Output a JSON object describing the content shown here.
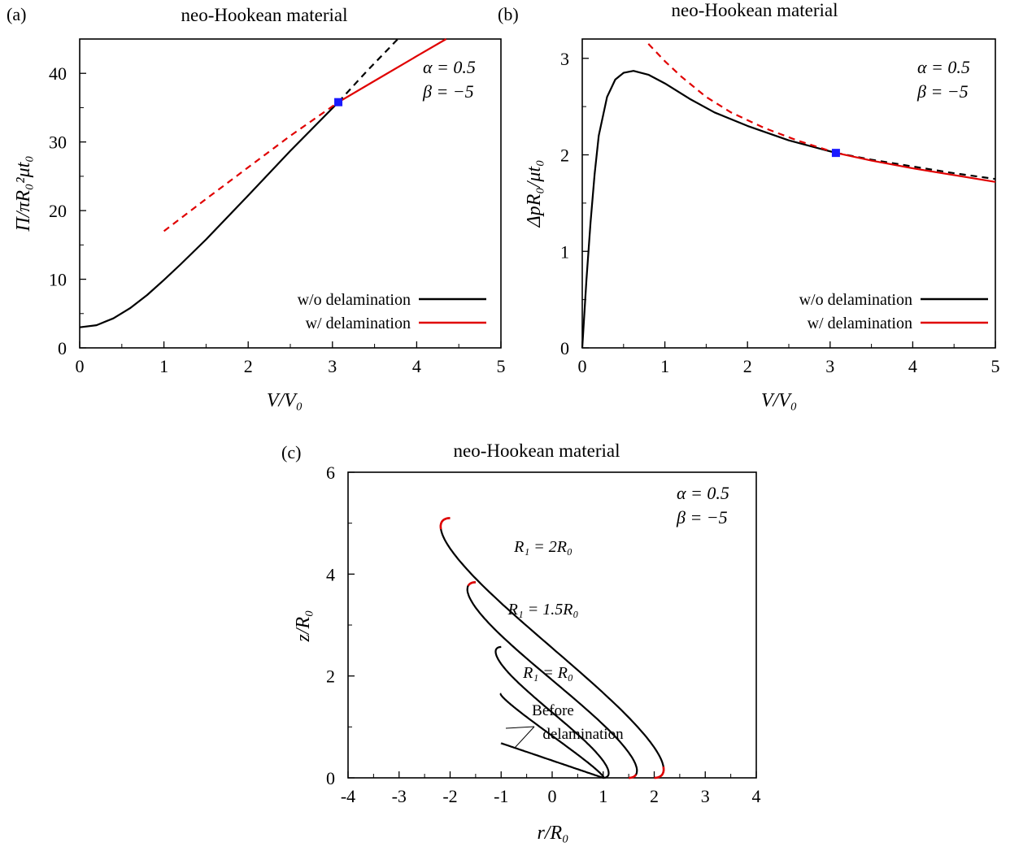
{
  "panels": [
    {
      "panel_label": "(a)",
      "title": "neo-Hookean material",
      "xlabel": "V/V₀",
      "ylabel": "Π/πR₀²μt₀",
      "params": [
        "α = 0.5",
        "β = −5"
      ],
      "legend": [
        "w/o delamination",
        "w/   delamination"
      ]
    },
    {
      "panel_label": "(b)",
      "title": "neo-Hookean material",
      "xlabel": "V/V₀",
      "ylabel": "ΔpR₀/μt₀",
      "params": [
        "α = 0.5",
        "β = −5"
      ],
      "legend": [
        "w/o delamination",
        "w/   delamination"
      ]
    },
    {
      "panel_label": "(c)",
      "title": "neo-Hookean material",
      "xlabel": "r/R₀",
      "ylabel": "z/R₀",
      "params": [
        "α = 0.5",
        "β = −5"
      ],
      "annotations": [
        "R₁ = 2R₀",
        "R₁ = 1.5R₀",
        "R₁ = R₀",
        "Before",
        "delamination"
      ]
    }
  ],
  "colors": {
    "without": "#000000",
    "with": "#e00000",
    "marker": "#1a1aff"
  },
  "chart_data": [
    {
      "type": "line",
      "xlim": [
        0,
        5
      ],
      "ylim": [
        0,
        45
      ],
      "xticks": [
        0,
        1,
        2,
        3,
        4,
        5
      ],
      "yticks": [
        0,
        10,
        20,
        30,
        40
      ],
      "series": [
        {
          "name": "w/o delamination",
          "style": "solid",
          "color": "#000000",
          "x": [
            0,
            0.2,
            0.4,
            0.6,
            0.8,
            1.0,
            1.2,
            1.5,
            2.0,
            2.5,
            3.07
          ],
          "y": [
            3,
            3.3,
            4.3,
            5.8,
            7.7,
            9.9,
            12.2,
            15.8,
            22.2,
            28.7,
            35.8
          ]
        },
        {
          "name": "",
          "style": "dashed",
          "color": "#000000",
          "x": [
            3.07,
            3.4,
            3.8
          ],
          "y": [
            35.8,
            40.2,
            45.3
          ]
        },
        {
          "name": "w/   delamination",
          "style": "solid",
          "color": "#e00000",
          "x": [
            3.07,
            3.5,
            4.0,
            4.35
          ],
          "y": [
            35.8,
            38.9,
            42.5,
            45.0
          ]
        },
        {
          "name": "",
          "style": "dashed",
          "color": "#e00000",
          "x": [
            1.0,
            1.5,
            2.0,
            2.5,
            3.07
          ],
          "y": [
            17.0,
            21.7,
            26.3,
            30.9,
            35.8
          ]
        }
      ],
      "markers": [
        {
          "x": 3.07,
          "y": 35.8
        }
      ]
    },
    {
      "type": "line",
      "xlim": [
        0,
        5
      ],
      "ylim": [
        0,
        3.2
      ],
      "xticks": [
        0,
        1,
        2,
        3,
        4,
        5
      ],
      "yticks": [
        0,
        1,
        2,
        3
      ],
      "series": [
        {
          "name": "w/o delamination",
          "style": "solid",
          "color": "#000000",
          "x": [
            0,
            0.05,
            0.1,
            0.15,
            0.2,
            0.3,
            0.4,
            0.5,
            0.62,
            0.8,
            1.0,
            1.3,
            1.6,
            2.0,
            2.5,
            3.07
          ],
          "y": [
            0,
            0.7,
            1.3,
            1.8,
            2.2,
            2.6,
            2.78,
            2.85,
            2.87,
            2.83,
            2.74,
            2.58,
            2.44,
            2.3,
            2.15,
            2.02
          ]
        },
        {
          "name": "",
          "style": "dashed",
          "color": "#000000",
          "x": [
            3.07,
            3.5,
            4.0,
            4.5,
            5.0
          ],
          "y": [
            2.02,
            1.95,
            1.88,
            1.81,
            1.75
          ]
        },
        {
          "name": "w/   delamination",
          "style": "solid",
          "color": "#e00000",
          "x": [
            3.07,
            3.5,
            4.0,
            4.5,
            5.0
          ],
          "y": [
            2.02,
            1.94,
            1.86,
            1.79,
            1.72
          ]
        },
        {
          "name": "",
          "style": "dashed",
          "color": "#e00000",
          "x": [
            0.8,
            1.0,
            1.2,
            1.5,
            1.8,
            2.2,
            2.6,
            3.07
          ],
          "y": [
            3.15,
            2.97,
            2.81,
            2.6,
            2.44,
            2.28,
            2.15,
            2.02
          ]
        }
      ],
      "markers": [
        {
          "x": 3.07,
          "y": 2.02
        }
      ]
    },
    {
      "type": "line",
      "xlim": [
        -4,
        4
      ],
      "ylim": [
        0,
        6
      ],
      "xticks": [
        -4,
        -3,
        -2,
        -1,
        0,
        1,
        2,
        3,
        4
      ],
      "yticks": [
        0,
        2,
        4,
        6
      ],
      "profiles": [
        {
          "label": "R₁ = 2R₀",
          "base": 2.0,
          "top": 5.1,
          "max_r": 2.95,
          "red_fraction": 0.3
        },
        {
          "label": "R₁ = 1.5R₀",
          "base": 1.5,
          "top": 3.84,
          "max_r": 2.28,
          "red_fraction": 0.18
        },
        {
          "label": "R₁ = R₀",
          "base": 1.0,
          "top": 2.57,
          "max_r": 1.52,
          "red_fraction": 0.0
        },
        {
          "label": "Before delamination",
          "base": 1.0,
          "top": 1.65,
          "max_r": 1.13,
          "red_fraction": 0.0
        },
        {
          "label": "Before delamination",
          "base": 1.0,
          "top": 0.68,
          "max_r": 1.0,
          "red_fraction": 0.0
        }
      ]
    }
  ]
}
